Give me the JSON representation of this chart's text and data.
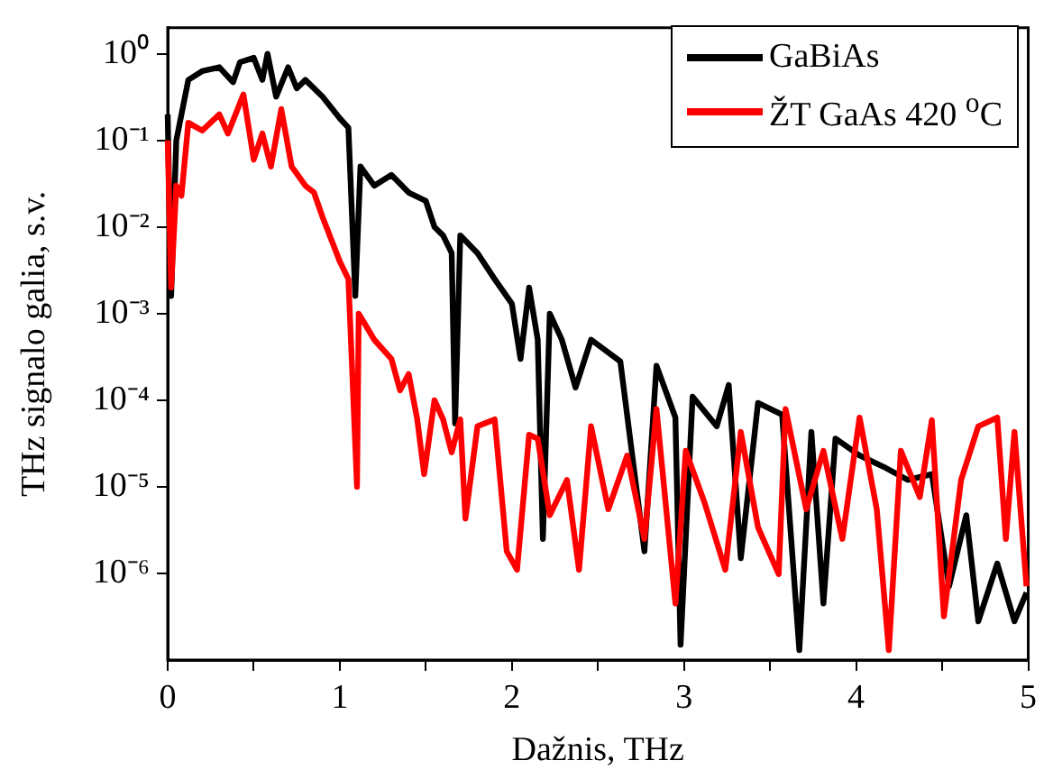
{
  "chart_data": {
    "type": "line",
    "xlabel": "Dažnis, THz",
    "ylabel": "THz signalo galia, s.v.",
    "log": "y",
    "grid": false,
    "legend": "top right",
    "marker": "none",
    "line_style": "solid",
    "xlim": [
      0,
      5
    ],
    "xticks": [
      0,
      {
        "value": 0.5,
        "label": null
      },
      1,
      {
        "value": 1.5,
        "label": null
      },
      2,
      {
        "value": 2.5,
        "label": null
      },
      3,
      {
        "value": 3.5,
        "label": null
      },
      4,
      {
        "value": 4.5,
        "label": null
      },
      5
    ],
    "ylim": [
      1e-07,
      2
    ],
    "yticks": [
      {
        "value": 1,
        "label": "10⁰"
      },
      {
        "value": 0.1,
        "label": "10⁻¹"
      },
      {
        "value": 0.01,
        "label": "10⁻²"
      },
      {
        "value": 0.001,
        "label": "10⁻³"
      },
      {
        "value": 0.0001,
        "label": "10⁻⁴"
      },
      {
        "value": 1e-05,
        "label": "10⁻⁵"
      },
      {
        "value": 1e-06,
        "label": "10⁻⁶"
      }
    ],
    "series": [
      {
        "name": "GaBiAs",
        "color": "#000000",
        "x": [
          0,
          0.02,
          0.05,
          0.08,
          0.12,
          0.2,
          0.3,
          0.38,
          0.42,
          0.5,
          0.55,
          0.58,
          0.63,
          0.7,
          0.75,
          0.8,
          0.9,
          1.0,
          1.05,
          1.09,
          1.12,
          1.2,
          1.3,
          1.4,
          1.5,
          1.55,
          1.6,
          1.65,
          1.67,
          1.7,
          1.8,
          1.9,
          2.0,
          2.05,
          2.1,
          2.15,
          2.18,
          2.22,
          2.29,
          2.37,
          2.46,
          2.63,
          2.77,
          2.84,
          2.95,
          2.98,
          3.05,
          3.19,
          3.26,
          3.33,
          3.43,
          3.57,
          3.67,
          3.74,
          3.81,
          3.88,
          4.02,
          4.16,
          4.3,
          4.44,
          4.54,
          4.64,
          4.71,
          4.82,
          4.92,
          4.99
        ],
        "values": [
          0.2,
          0.0016,
          0.1,
          0.2,
          0.5,
          0.63,
          0.7,
          0.47,
          0.8,
          0.9,
          0.5,
          1.0,
          0.32,
          0.7,
          0.4,
          0.5,
          0.32,
          0.18,
          0.14,
          0.0016,
          0.05,
          0.03,
          0.04,
          0.025,
          0.02,
          0.01,
          0.008,
          0.005,
          5.4e-05,
          0.008,
          0.005,
          0.0025,
          0.0013,
          0.0003,
          0.002,
          0.0005,
          2.5e-06,
          0.001,
          0.0005,
          0.00014,
          0.0005,
          0.00028,
          1.8e-06,
          0.00025,
          6.3e-05,
          1.5e-07,
          0.00011,
          5e-05,
          0.00015,
          1.5e-06,
          9.3e-05,
          6.8e-05,
          1.3e-07,
          4.3e-05,
          4.5e-07,
          3.6e-05,
          2.3e-05,
          1.7e-05,
          1.2e-05,
          1.4e-05,
          7.1e-07,
          4.7e-06,
          2.8e-07,
          1.3e-06,
          2.8e-07,
          6e-07
        ]
      },
      {
        "name": "ŽT GaAs 420 $^{o}$C",
        "color": "#ff0000",
        "x": [
          0,
          0.02,
          0.05,
          0.08,
          0.12,
          0.2,
          0.3,
          0.35,
          0.44,
          0.5,
          0.55,
          0.6,
          0.66,
          0.72,
          0.8,
          0.85,
          0.9,
          1.0,
          1.05,
          1.1,
          1.11,
          1.2,
          1.3,
          1.35,
          1.4,
          1.45,
          1.49,
          1.55,
          1.6,
          1.65,
          1.7,
          1.73,
          1.8,
          1.9,
          1.97,
          2.03,
          2.1,
          2.15,
          2.22,
          2.32,
          2.39,
          2.46,
          2.56,
          2.67,
          2.77,
          2.84,
          2.95,
          3.01,
          3.12,
          3.24,
          3.33,
          3.43,
          3.55,
          3.59,
          3.71,
          3.81,
          3.92,
          4.02,
          4.12,
          4.19,
          4.26,
          4.37,
          4.44,
          4.51,
          4.61,
          4.71,
          4.82,
          4.87,
          4.92,
          4.99
        ],
        "values": [
          0.1,
          0.002,
          0.03,
          0.023,
          0.16,
          0.13,
          0.2,
          0.12,
          0.34,
          0.06,
          0.12,
          0.05,
          0.23,
          0.05,
          0.03,
          0.025,
          0.013,
          0.004,
          0.0025,
          1e-05,
          0.001,
          0.0005,
          0.0003,
          0.00013,
          0.0002,
          6e-05,
          1.4e-05,
          0.0001,
          6e-05,
          2.5e-05,
          6e-05,
          4.3e-06,
          5e-05,
          6e-05,
          1.8e-06,
          1.1e-06,
          4e-05,
          3.6e-05,
          4.7e-06,
          1.2e-05,
          1.1e-06,
          5e-05,
          5.5e-06,
          2.3e-05,
          2.5e-06,
          7.9e-05,
          4.5e-07,
          2.6e-05,
          6.5e-06,
          1.1e-06,
          4.3e-05,
          3.4e-06,
          9.8e-07,
          7.9e-05,
          5.5e-06,
          2.6e-05,
          2.5e-06,
          6.3e-05,
          5.5e-06,
          1.3e-07,
          2.6e-05,
          7.6e-06,
          5.9e-05,
          3.2e-07,
          1.2e-05,
          5e-05,
          6.3e-05,
          2.5e-06,
          4.3e-05,
          7.1e-07
        ]
      }
    ]
  }
}
